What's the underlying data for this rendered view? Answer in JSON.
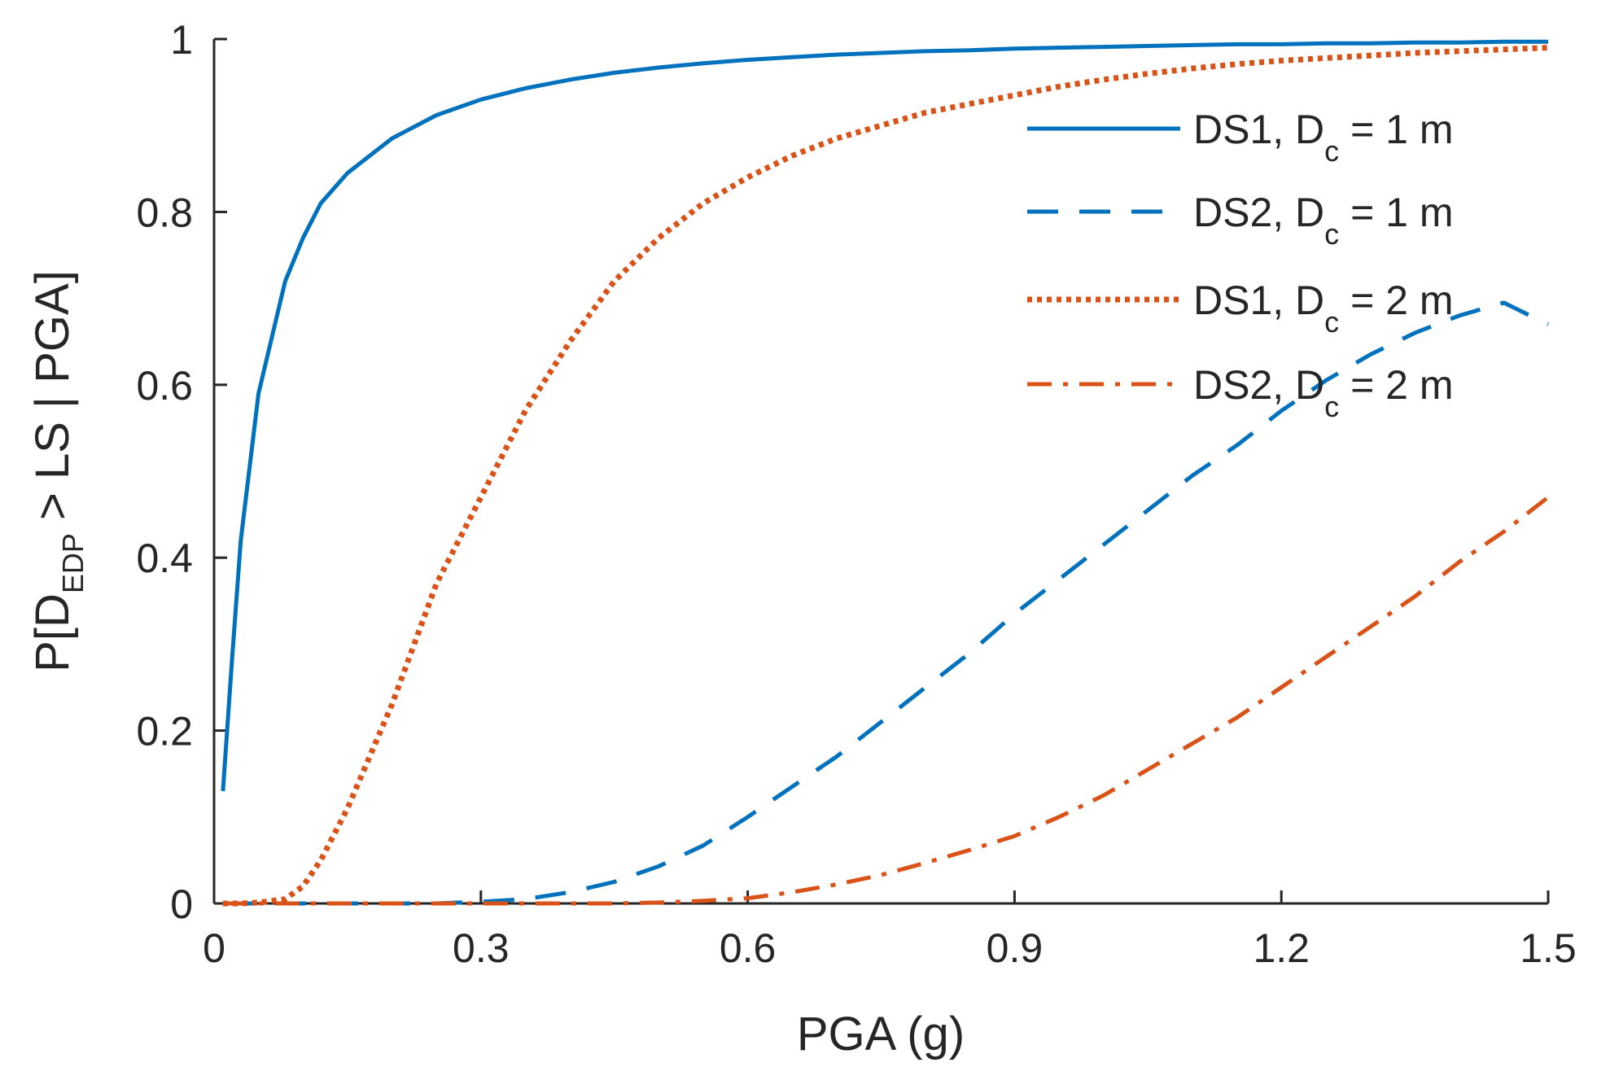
{
  "chart_data": {
    "type": "line",
    "title": "",
    "xlabel": "PGA (g)",
    "ylabel": {
      "prefix": "P[D",
      "subscript": "EDP",
      "suffix": " > LS | PGA]"
    },
    "xlim": [
      0,
      1.5
    ],
    "ylim": [
      0,
      1
    ],
    "xticks": [
      0,
      0.3,
      0.6,
      0.9,
      1.2,
      1.5
    ],
    "xtick_labels": [
      "0",
      "0.3",
      "0.6",
      "0.9",
      "1.2",
      "1.5"
    ],
    "yticks": [
      0,
      0.2,
      0.4,
      0.6,
      0.8,
      1
    ],
    "ytick_labels": [
      "0",
      "0.2",
      "0.4",
      "0.6",
      "0.8",
      "1"
    ],
    "grid": false,
    "legend_position": "top-right",
    "x": [
      0.01,
      0.02,
      0.03,
      0.05,
      0.08,
      0.1,
      0.12,
      0.15,
      0.2,
      0.25,
      0.3,
      0.35,
      0.4,
      0.45,
      0.5,
      0.55,
      0.6,
      0.65,
      0.7,
      0.75,
      0.8,
      0.85,
      0.9,
      0.95,
      1.0,
      1.05,
      1.1,
      1.15,
      1.2,
      1.25,
      1.3,
      1.35,
      1.4,
      1.45,
      1.5
    ],
    "series": [
      {
        "name": "DS1, Dc = 1 m",
        "legend_main": "DS1, D",
        "legend_sub": "c",
        "legend_tail": " = 1 m",
        "color": "#0072BD",
        "style": "solid",
        "values": [
          0.13,
          0.28,
          0.42,
          0.59,
          0.72,
          0.77,
          0.81,
          0.845,
          0.885,
          0.912,
          0.93,
          0.943,
          0.953,
          0.961,
          0.967,
          0.972,
          0.976,
          0.979,
          0.982,
          0.984,
          0.986,
          0.987,
          0.989,
          0.99,
          0.991,
          0.992,
          0.993,
          0.994,
          0.994,
          0.995,
          0.995,
          0.996,
          0.996,
          0.997,
          0.997
        ]
      },
      {
        "name": "DS2, Dc = 1 m",
        "legend_main": "DS2, D",
        "legend_sub": "c",
        "legend_tail": " = 1 m",
        "color": "#0072BD",
        "style": "dashed",
        "values": [
          0,
          0,
          0,
          0,
          0,
          0,
          0,
          0,
          0,
          0,
          0.002,
          0.005,
          0.013,
          0.025,
          0.043,
          0.067,
          0.1,
          0.135,
          0.17,
          0.21,
          0.25,
          0.29,
          0.335,
          0.375,
          0.415,
          0.455,
          0.495,
          0.53,
          0.57,
          0.605,
          0.635,
          0.66,
          0.68,
          0.695,
          0.67
        ]
      },
      {
        "name": "DS1, Dc = 2 m",
        "legend_main": "DS1, D",
        "legend_sub": "c",
        "legend_tail": " = 2 m",
        "color": "#D95319",
        "style": "dotted",
        "values": [
          0,
          0,
          0,
          0.001,
          0.005,
          0.02,
          0.05,
          0.11,
          0.23,
          0.37,
          0.47,
          0.57,
          0.65,
          0.72,
          0.77,
          0.81,
          0.84,
          0.865,
          0.885,
          0.9,
          0.915,
          0.925,
          0.935,
          0.945,
          0.953,
          0.96,
          0.966,
          0.971,
          0.975,
          0.978,
          0.981,
          0.984,
          0.986,
          0.988,
          0.99
        ]
      },
      {
        "name": "DS2, Dc = 2 m",
        "legend_main": "DS2, D",
        "legend_sub": "c",
        "legend_tail": " = 2 m",
        "color": "#D95319",
        "style": "dashdot",
        "values": [
          0,
          0,
          0,
          0,
          0,
          0,
          0,
          0,
          0,
          0,
          0,
          0,
          0,
          0,
          0.001,
          0.003,
          0.006,
          0.013,
          0.022,
          0.033,
          0.047,
          0.062,
          0.078,
          0.1,
          0.125,
          0.155,
          0.185,
          0.215,
          0.25,
          0.285,
          0.32,
          0.355,
          0.395,
          0.43,
          0.47
        ]
      }
    ]
  }
}
